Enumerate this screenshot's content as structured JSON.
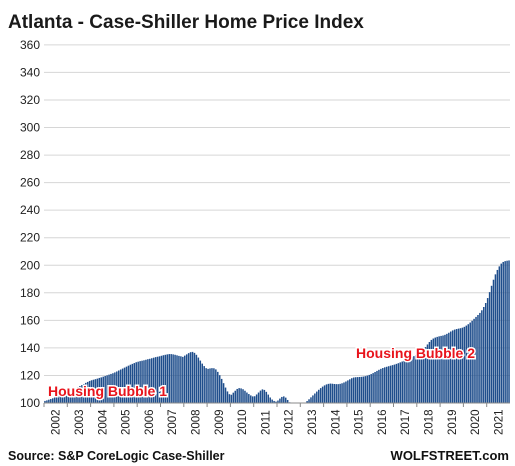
{
  "chart_data": {
    "type": "bar",
    "title": "Atlanta -  Case-Shiller Home Price Index",
    "source": "Source: S&P CoreLogic Case-Shiller",
    "brand": "WOLFSTREET.com",
    "ylim": [
      100,
      365
    ],
    "yticks": [
      100,
      120,
      140,
      160,
      180,
      200,
      220,
      240,
      260,
      280,
      300,
      320,
      340,
      360
    ],
    "x_start": "2002-01",
    "x_end": "2021-12",
    "year_labels": [
      "2002",
      "2003",
      "2004",
      "2005",
      "2006",
      "2007",
      "2008",
      "2009",
      "2010",
      "2011",
      "2012",
      "2013",
      "2014",
      "2015",
      "2016",
      "2017",
      "2018",
      "2019",
      "2020",
      "2021"
    ],
    "grid": true,
    "bar_color": "#1f4e8c",
    "annotations": [
      {
        "text": "Housing Bubble 1",
        "color": "#e8141c"
      },
      {
        "text": "Housing Bubble 2",
        "color": "#e8141c"
      }
    ],
    "series": [
      {
        "values": [
          101.5,
          101.9,
          102.4,
          102.9,
          103.4,
          104.0,
          104.5,
          105.0,
          105.5,
          106.0,
          106.5,
          107.0,
          107.7,
          108.4,
          109.1,
          109.9,
          110.7,
          111.5,
          112.3,
          113.0,
          113.8,
          114.6,
          115.3,
          116.0,
          116.5,
          116.9,
          117.3,
          117.7,
          118.2,
          118.6,
          119.1,
          119.6,
          120.1,
          120.6,
          121.1,
          121.6,
          122.2,
          122.9,
          123.6,
          124.3,
          125.0,
          125.7,
          126.4,
          127.1,
          127.8,
          128.4,
          129.0,
          129.6,
          130.0,
          130.4,
          130.7,
          131.0,
          131.4,
          131.8,
          132.1,
          132.5,
          132.9,
          133.3,
          133.6,
          133.9,
          134.3,
          134.7,
          135.0,
          135.3,
          135.5,
          135.5,
          135.3,
          135.0,
          134.6,
          134.2,
          133.9,
          133.5,
          134.4,
          135.3,
          136.2,
          136.9,
          137.1,
          136.4,
          135.0,
          133.0,
          130.8,
          128.6,
          126.8,
          125.3,
          124.8,
          125.1,
          125.3,
          125.2,
          124.4,
          122.6,
          120.2,
          117.5,
          114.4,
          111.2,
          108.4,
          106.4,
          106.0,
          107.5,
          108.9,
          110.2,
          110.8,
          110.6,
          110.0,
          108.9,
          107.6,
          106.5,
          105.5,
          104.8,
          104.9,
          106.2,
          107.6,
          109.0,
          109.9,
          109.5,
          108.1,
          106.1,
          104.0,
          102.5,
          101.5,
          101.0,
          101.8,
          103.2,
          104.4,
          104.8,
          103.9,
          102.2,
          100.5,
          99.3,
          98.6,
          98.3,
          98.2,
          98.3,
          98.7,
          99.3,
          100.2,
          101.4,
          102.7,
          104.1,
          105.5,
          106.9,
          108.3,
          109.6,
          110.8,
          111.9,
          112.8,
          113.5,
          113.9,
          114.1,
          114.0,
          113.8,
          113.7,
          113.7,
          113.9,
          114.3,
          114.9,
          115.6,
          116.4,
          117.2,
          118.0,
          118.5,
          118.7,
          118.8,
          118.9,
          119.0,
          119.2,
          119.5,
          119.9,
          120.4,
          121.0,
          121.7,
          122.5,
          123.3,
          124.1,
          124.8,
          125.4,
          125.9,
          126.3,
          126.7,
          127.1,
          127.5,
          127.9,
          128.4,
          128.9,
          129.5,
          130.1,
          130.7,
          131.3,
          131.9,
          132.6,
          133.3,
          134.0,
          134.7,
          135.5,
          136.4,
          137.6,
          139.0,
          140.6,
          142.5,
          144.3,
          145.8,
          146.8,
          147.5,
          148.0,
          148.4,
          148.7,
          149.0,
          149.5,
          150.2,
          151.0,
          151.9,
          152.7,
          153.3,
          153.7,
          154.0,
          154.3,
          154.7,
          155.3,
          156.2,
          157.2,
          158.4,
          159.7,
          161.1,
          162.5,
          163.9,
          165.4,
          167.3,
          169.7,
          172.6,
          176.2,
          180.5,
          185.1,
          189.5,
          193.4,
          196.6,
          199.2,
          201.2,
          202.4,
          203.0,
          203.3,
          203.5
        ]
      }
    ]
  }
}
